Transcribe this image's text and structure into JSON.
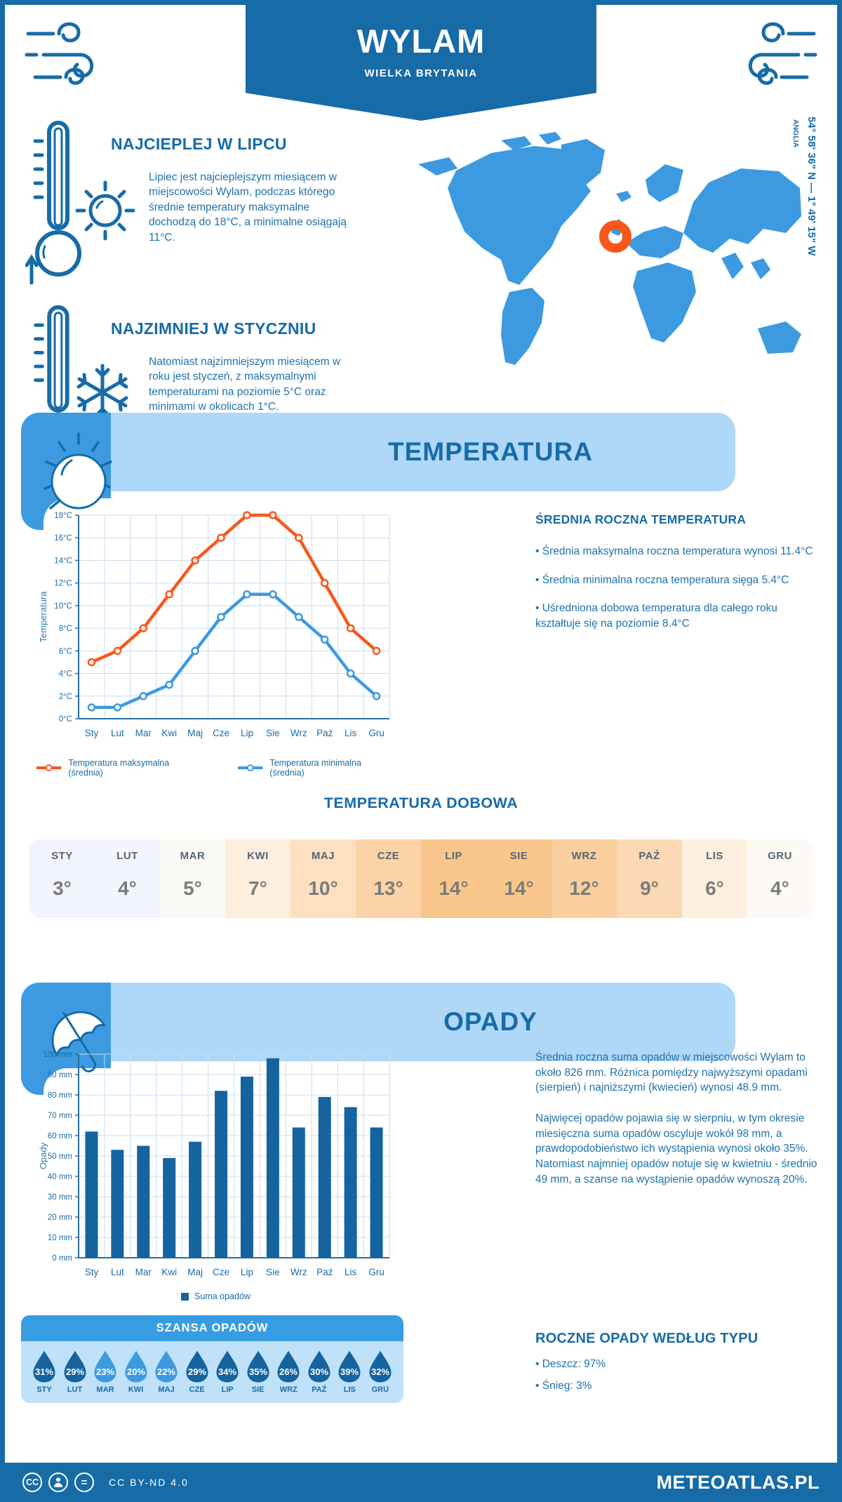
{
  "colors": {
    "primary": "#176ba7",
    "accent": "#3d9ae0",
    "orange": "#f8571b",
    "bar": "#15639f",
    "banner_bg": "#aed7f8",
    "chance_header_bg": "#379de2",
    "chance_body_bg": "#bfe1fa",
    "drop_dark": "#15639f",
    "drop_light": "#3d9ae0",
    "grid": "#c9dcee"
  },
  "header": {
    "title": "WYLAM",
    "subtitle": "WIELKA BRYTANIA"
  },
  "location": {
    "coords": "54° 58' 36\" N — 1° 49' 15\" W",
    "region": "ANGLIA"
  },
  "highlights": {
    "warmest": {
      "title": "NAJCIEPLEJ W LIPCU",
      "text": "Lipiec jest najcieplejszym miesiącem w miejscowości Wylam, podczas którego średnie temperatury maksymalne dochodzą do 18°C, a minimalne osiągają 11°C."
    },
    "coldest": {
      "title": "NAJZIMNIEJ W STYCZNIU",
      "text": "Natomiast najzimniejszym miesiącem w roku jest styczeń, z maksymalnymi temperaturami na poziomie 5°C oraz minimami w okolicach 1°C."
    }
  },
  "temperature": {
    "banner": "TEMPERATURA",
    "annual": {
      "heading": "ŚREDNIA ROCZNA TEMPERATURA",
      "bullets": [
        "Średnia maksymalna roczna temperatura wynosi 11.4°C",
        "Średnia minimalna roczna temperatura sięga 5.4°C",
        "Uśredniona dobowa temperatura dla całego roku kształtuje się na poziomie 8.4°C"
      ]
    },
    "daily": {
      "heading": "TEMPERATURA DOBOWA",
      "months": [
        "STY",
        "LUT",
        "MAR",
        "KWI",
        "MAJ",
        "CZE",
        "LIP",
        "SIE",
        "WRZ",
        "PAŹ",
        "LIS",
        "GRU"
      ],
      "values": [
        "3°",
        "4°",
        "5°",
        "7°",
        "10°",
        "13°",
        "14°",
        "14°",
        "12°",
        "9°",
        "6°",
        "4°"
      ],
      "cell_colors": [
        "#f2f4fb",
        "#f3f5fc",
        "#faf9f4",
        "#fdeedd",
        "#fce0c0",
        "#fbd3a6",
        "#f9c78b",
        "#f9c78b",
        "#facf9e",
        "#fbd9b5",
        "#fdeedd",
        "#fdf9f4"
      ]
    }
  },
  "precipitation": {
    "banner": "OPADY",
    "paragraphs": [
      "Średnia roczna suma opadów w miejscowości Wylam to około 826 mm. Różnica pomiędzy najwyższymi opadami (sierpień) i najniższymi (kwiecień) wynosi 48.9 mm.",
      "Najwięcej opadów pojawia się w sierpniu, w tym okresie miesięczna suma opadów oscyluje wokół 98 mm, a prawdopodobieństwo ich wystąpienia wynosi około 35%. Natomiast najmniej opadów notuje się w kwietniu - średnio 49 mm, a szanse na wystąpienie opadów wynoszą 20%."
    ],
    "chance": {
      "heading": "SZANSA OPADÓW",
      "months": [
        "STY",
        "LUT",
        "MAR",
        "KWI",
        "MAJ",
        "CZE",
        "LIP",
        "SIE",
        "WRZ",
        "PAŹ",
        "LIS",
        "GRU"
      ],
      "values": [
        "31%",
        "29%",
        "23%",
        "20%",
        "22%",
        "29%",
        "34%",
        "35%",
        "26%",
        "30%",
        "39%",
        "32%"
      ],
      "dark": [
        true,
        true,
        false,
        false,
        false,
        true,
        true,
        true,
        true,
        true,
        true,
        true
      ]
    },
    "types": {
      "heading": "ROCZNE OPADY WEDŁUG TYPU",
      "bullets": [
        "Deszcz: 97%",
        "Śnieg: 3%"
      ]
    }
  },
  "footer": {
    "license": "CC BY-ND 4.0",
    "brand": "METEOATLAS.PL"
  },
  "chart_data": [
    {
      "type": "line",
      "title": "Temperatura",
      "categories": [
        "Sty",
        "Lut",
        "Mar",
        "Kwi",
        "Maj",
        "Cze",
        "Lip",
        "Sie",
        "Wrz",
        "Paź",
        "Lis",
        "Gru"
      ],
      "series": [
        {
          "name": "Temperatura maksymalna (średnia)",
          "color": "#f8571b",
          "values": [
            5,
            6,
            8,
            11,
            14,
            16,
            18,
            18,
            16,
            12,
            8,
            6
          ]
        },
        {
          "name": "Temperatura minimalna (średnia)",
          "color": "#3d9ae0",
          "values": [
            1,
            1,
            2,
            3,
            6,
            9,
            11,
            11,
            9,
            7,
            4,
            2
          ]
        }
      ],
      "xlabel": "",
      "ylabel": "Temperatura",
      "ylim": [
        0,
        18
      ],
      "ytick_step": 2,
      "ytick_suffix": "°C",
      "grid": true,
      "legend_position": "bottom"
    },
    {
      "type": "bar",
      "title": "Opady",
      "categories": [
        "Sty",
        "Lut",
        "Mar",
        "Kwi",
        "Maj",
        "Cze",
        "Lip",
        "Sie",
        "Wrz",
        "Paź",
        "Lis",
        "Gru"
      ],
      "series": [
        {
          "name": "Suma opadów",
          "color": "#15639f",
          "values": [
            62,
            53,
            55,
            49,
            57,
            82,
            89,
            98,
            64,
            79,
            74,
            64
          ]
        }
      ],
      "xlabel": "",
      "ylabel": "Opady",
      "ylim": [
        0,
        100
      ],
      "ytick_step": 10,
      "ytick_suffix": " mm",
      "grid": true,
      "legend_position": "bottom"
    }
  ]
}
